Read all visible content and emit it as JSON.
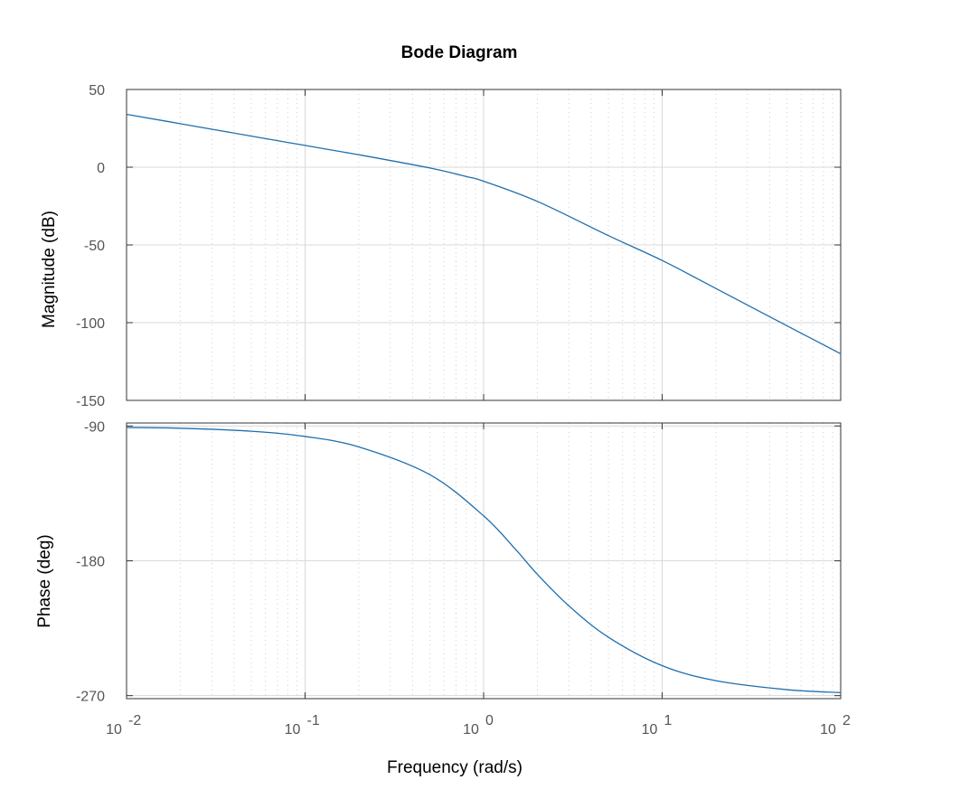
{
  "chart_data": {
    "type": "line",
    "title": "Bode Diagram",
    "xlabel": "Frequency  (rad/s)",
    "x_scale": "log",
    "xlim": [
      0.01,
      100
    ],
    "x_ticks": [
      {
        "value": 0.01,
        "base": "10",
        "exp": "-2"
      },
      {
        "value": 0.1,
        "base": "10",
        "exp": "-1"
      },
      {
        "value": 1,
        "base": "10",
        "exp": "0"
      },
      {
        "value": 10,
        "base": "10",
        "exp": "1"
      },
      {
        "value": 100,
        "base": "10",
        "exp": "2"
      }
    ],
    "grid": true,
    "line_color": "#1f6fad",
    "grid_color": "#d9d9d9",
    "panels": [
      {
        "name": "magnitude",
        "ylabel": "Magnitude (dB)",
        "ylim": [
          -150,
          50
        ],
        "y_ticks": [
          {
            "value": 50,
            "label": "50"
          },
          {
            "value": 0,
            "label": "0"
          },
          {
            "value": -50,
            "label": "-50"
          },
          {
            "value": -100,
            "label": "-100"
          },
          {
            "value": -150,
            "label": "-150"
          }
        ],
        "series": [
          {
            "x": [
              0.01,
              0.02,
              0.05,
              0.1,
              0.2,
              0.5,
              0.8,
              1,
              2,
              5,
              10,
              20,
              50,
              100
            ],
            "y": [
              34,
              28,
              20,
              14,
              8,
              -0.5,
              -6,
              -9,
              -22,
              -44,
              -60,
              -78,
              -102,
              -120
            ]
          }
        ]
      },
      {
        "name": "phase",
        "ylabel": "Phase (deg)",
        "ylim": [
          -272,
          -88
        ],
        "y_ticks": [
          {
            "value": -90,
            "label": "-90"
          },
          {
            "value": -180,
            "label": "-180"
          },
          {
            "value": -270,
            "label": "-270"
          }
        ],
        "series": [
          {
            "x": [
              0.01,
              0.02,
              0.05,
              0.1,
              0.2,
              0.5,
              1,
              1.5,
              2,
              3,
              5,
              10,
              20,
              50,
              100
            ],
            "y": [
              -91,
              -91.5,
              -93.5,
              -97,
              -104,
              -122.5,
              -150,
              -172,
              -189,
              -210,
              -231,
              -250,
              -260,
              -266,
              -268
            ]
          }
        ]
      }
    ]
  }
}
